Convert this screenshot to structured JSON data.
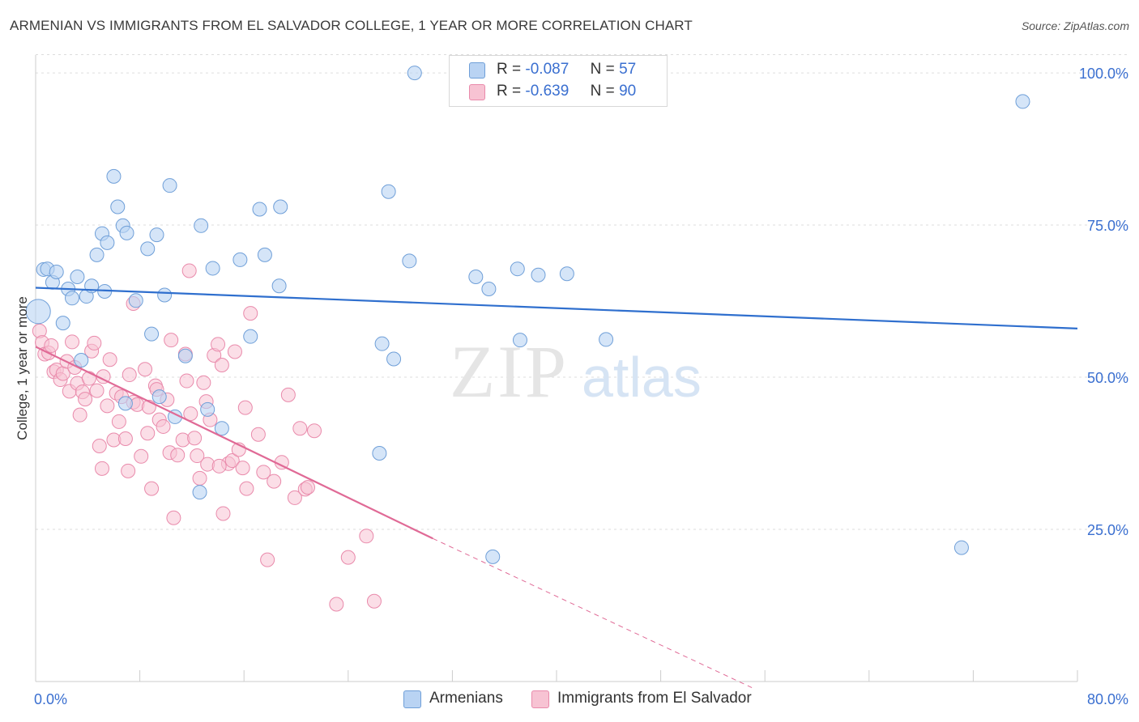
{
  "title": "ARMENIAN VS IMMIGRANTS FROM EL SALVADOR COLLEGE, 1 YEAR OR MORE CORRELATION CHART",
  "source": "Source: ZipAtlas.com",
  "watermark": {
    "zip": "ZIP",
    "atlas": "atlas"
  },
  "legend": {
    "r_label": "R =",
    "n_label": "N =",
    "series": [
      {
        "r": "-0.087",
        "n": "57"
      },
      {
        "r": "-0.639",
        "n": "90"
      }
    ]
  },
  "bottom_legend": [
    "Armenians",
    "Immigrants from El Salvador"
  ],
  "colors": {
    "blue_fill": "#b9d3f3",
    "blue_stroke": "#6f9fd8",
    "blue_line": "#2f6fce",
    "pink_fill": "#f7c3d3",
    "pink_stroke": "#e98aab",
    "pink_line": "#e06a96",
    "axis_text": "#3a6fd0",
    "grid": "#dddddd"
  },
  "chart_data": {
    "type": "scatter",
    "title": "ARMENIAN VS IMMIGRANTS FROM EL SALVADOR COLLEGE, 1 YEAR OR MORE CORRELATION CHART",
    "xlabel": "",
    "ylabel": "College, 1 year or more",
    "xlim": [
      0,
      80
    ],
    "ylim": [
      0,
      104
    ],
    "x_tick_labels": [
      "0.0%",
      "80.0%"
    ],
    "y_ticks": [
      25,
      50,
      75,
      100
    ],
    "y_tick_labels": [
      "25.0%",
      "50.0%",
      "75.0%",
      "100.0%"
    ],
    "series": [
      {
        "name": "Armenians",
        "trend": {
          "x0": 0,
          "y0": 64.7,
          "x1": 80,
          "y1": 58.0
        },
        "points": [
          [
            0.2,
            60.8
          ],
          [
            0.6,
            67.7
          ],
          [
            0.9,
            67.8
          ],
          [
            1.3,
            65.6
          ],
          [
            1.6,
            67.3
          ],
          [
            2.1,
            58.9
          ],
          [
            2.5,
            64.5
          ],
          [
            2.8,
            63.0
          ],
          [
            3.2,
            66.5
          ],
          [
            3.5,
            52.8
          ],
          [
            3.9,
            63.3
          ],
          [
            4.3,
            65.0
          ],
          [
            4.7,
            70.1
          ],
          [
            5.1,
            73.6
          ],
          [
            5.5,
            72.1
          ],
          [
            5.3,
            64.1
          ],
          [
            6.0,
            83.0
          ],
          [
            6.3,
            78.0
          ],
          [
            6.7,
            74.9
          ],
          [
            7.0,
            73.7
          ],
          [
            7.7,
            62.6
          ],
          [
            8.6,
            71.1
          ],
          [
            9.3,
            73.4
          ],
          [
            9.9,
            63.5
          ],
          [
            10.3,
            81.5
          ],
          [
            8.9,
            57.1
          ],
          [
            9.5,
            46.8
          ],
          [
            10.7,
            43.5
          ],
          [
            11.5,
            53.5
          ],
          [
            12.6,
            31.1
          ],
          [
            12.7,
            74.9
          ],
          [
            13.2,
            44.7
          ],
          [
            13.6,
            67.9
          ],
          [
            14.3,
            41.6
          ],
          [
            15.7,
            69.3
          ],
          [
            16.5,
            56.7
          ],
          [
            17.2,
            77.6
          ],
          [
            17.6,
            70.1
          ],
          [
            18.7,
            65.0
          ],
          [
            18.8,
            78.0
          ],
          [
            26.4,
            37.5
          ],
          [
            26.6,
            55.5
          ],
          [
            27.1,
            80.5
          ],
          [
            27.5,
            53.0
          ],
          [
            28.7,
            69.1
          ],
          [
            29.1,
            100.0
          ],
          [
            33.8,
            66.5
          ],
          [
            34.8,
            64.5
          ],
          [
            35.1,
            20.5
          ],
          [
            37.0,
            67.8
          ],
          [
            37.2,
            56.1
          ],
          [
            38.6,
            66.8
          ],
          [
            40.8,
            67.0
          ],
          [
            43.8,
            56.2
          ],
          [
            71.1,
            22.0
          ],
          [
            75.8,
            95.3
          ],
          [
            6.9,
            45.7
          ]
        ]
      },
      {
        "name": "Immigrants from El Salvador",
        "trend": {
          "x0": 0,
          "y0": 55.0,
          "x1": 30.5,
          "y1": 23.5
        },
        "trend_extension": {
          "x0": 30.5,
          "y0": 23.5,
          "x1": 55.0,
          "y1": -1.0
        },
        "points": [
          [
            0.3,
            57.6
          ],
          [
            0.5,
            55.7
          ],
          [
            0.7,
            53.8
          ],
          [
            1.0,
            54.0
          ],
          [
            1.2,
            55.2
          ],
          [
            1.4,
            50.9
          ],
          [
            1.6,
            51.2
          ],
          [
            1.9,
            49.6
          ],
          [
            2.1,
            50.6
          ],
          [
            2.4,
            52.6
          ],
          [
            2.6,
            47.7
          ],
          [
            2.8,
            55.8
          ],
          [
            3.0,
            51.6
          ],
          [
            3.2,
            49.0
          ],
          [
            3.4,
            43.8
          ],
          [
            3.6,
            47.6
          ],
          [
            3.8,
            46.4
          ],
          [
            4.1,
            49.8
          ],
          [
            4.3,
            54.3
          ],
          [
            4.5,
            55.6
          ],
          [
            4.7,
            47.8
          ],
          [
            4.9,
            38.7
          ],
          [
            5.2,
            50.1
          ],
          [
            5.1,
            35.0
          ],
          [
            5.5,
            45.3
          ],
          [
            5.7,
            52.9
          ],
          [
            6.0,
            39.7
          ],
          [
            6.2,
            47.4
          ],
          [
            6.6,
            46.8
          ],
          [
            6.9,
            39.9
          ],
          [
            7.2,
            50.4
          ],
          [
            7.5,
            45.9
          ],
          [
            7.1,
            34.6
          ],
          [
            7.8,
            45.5
          ],
          [
            8.1,
            37.0
          ],
          [
            8.4,
            51.3
          ],
          [
            8.7,
            45.1
          ],
          [
            8.6,
            40.8
          ],
          [
            8.9,
            31.7
          ],
          [
            9.2,
            48.6
          ],
          [
            9.5,
            43.0
          ],
          [
            9.8,
            41.9
          ],
          [
            10.1,
            46.3
          ],
          [
            10.3,
            37.6
          ],
          [
            10.4,
            56.1
          ],
          [
            10.6,
            26.9
          ],
          [
            10.9,
            37.2
          ],
          [
            11.3,
            39.7
          ],
          [
            11.6,
            49.4
          ],
          [
            11.9,
            44.0
          ],
          [
            11.5,
            53.8
          ],
          [
            12.2,
            40.0
          ],
          [
            12.4,
            37.1
          ],
          [
            12.6,
            33.4
          ],
          [
            12.9,
            49.1
          ],
          [
            13.1,
            46.0
          ],
          [
            13.4,
            43.0
          ],
          [
            13.7,
            53.6
          ],
          [
            13.2,
            35.7
          ],
          [
            14.0,
            55.4
          ],
          [
            14.3,
            52.0
          ],
          [
            14.4,
            27.6
          ],
          [
            14.8,
            35.8
          ],
          [
            15.1,
            36.3
          ],
          [
            15.3,
            54.2
          ],
          [
            15.6,
            38.1
          ],
          [
            15.9,
            35.1
          ],
          [
            16.2,
            31.7
          ],
          [
            16.5,
            60.5
          ],
          [
            16.1,
            45.0
          ],
          [
            17.1,
            40.6
          ],
          [
            17.5,
            34.4
          ],
          [
            17.8,
            20.0
          ],
          [
            18.3,
            32.9
          ],
          [
            18.9,
            36.0
          ],
          [
            19.4,
            47.1
          ],
          [
            19.9,
            30.2
          ],
          [
            20.3,
            41.6
          ],
          [
            20.7,
            31.6
          ],
          [
            21.4,
            41.2
          ],
          [
            20.9,
            31.9
          ],
          [
            23.1,
            12.7
          ],
          [
            24.0,
            20.4
          ],
          [
            25.4,
            23.9
          ],
          [
            26.0,
            13.2
          ],
          [
            11.8,
            67.5
          ],
          [
            7.5,
            62.1
          ],
          [
            9.3,
            48.0
          ],
          [
            14.1,
            35.4
          ],
          [
            6.4,
            42.7
          ]
        ]
      }
    ]
  }
}
